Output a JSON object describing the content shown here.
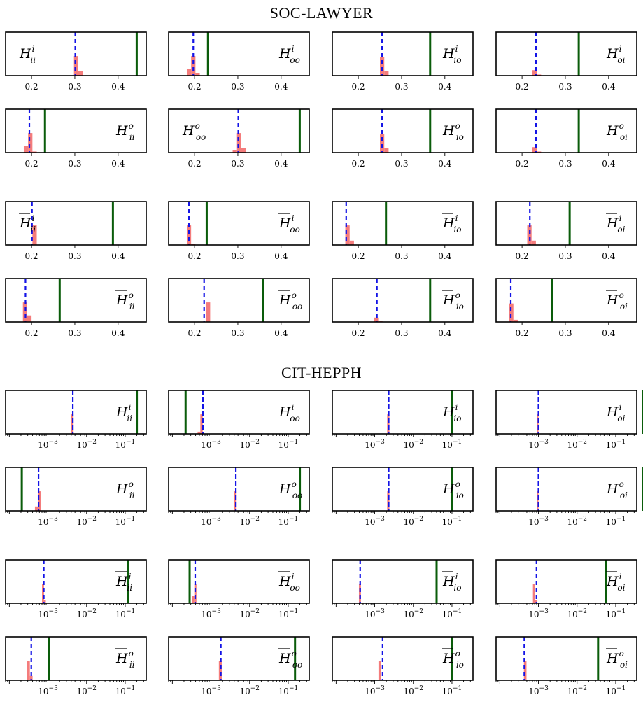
{
  "sections": [
    {
      "title": "SOC-LAWYER",
      "scale": "linear",
      "xlim": [
        0.14,
        0.465
      ],
      "ticks": [
        "0.2",
        "0.3",
        "0.4"
      ],
      "tick_values": [
        0.2,
        0.3,
        0.4
      ]
    },
    {
      "title": "CIT-HEPPH",
      "scale": "log",
      "xlim": [
        8e-05,
        0.35
      ],
      "ticks": [
        "10^-3",
        "10^-2",
        "10^-1"
      ],
      "tick_values": [
        0.001,
        0.01,
        0.1
      ]
    }
  ],
  "colors": {
    "hist": "#f47c7c",
    "observed": "#0a5c0a",
    "mean": "#1414e6",
    "frame": "#000000"
  },
  "chart_data": [
    {
      "type": "histogram-panel",
      "section": 0,
      "label": "H",
      "bar": false,
      "sup": "i",
      "sub": "ii",
      "label_side": "left",
      "observed": 0.443,
      "mean": 0.301,
      "bins": [
        {
          "x0": 0.298,
          "x1": 0.308,
          "h": 0.9
        },
        {
          "x0": 0.308,
          "x1": 0.318,
          "h": 0.2
        }
      ]
    },
    {
      "type": "histogram-panel",
      "section": 0,
      "label": "H",
      "bar": false,
      "sup": "i",
      "sub": "oo",
      "label_side": "right",
      "observed": 0.231,
      "mean": 0.197,
      "bins": [
        {
          "x0": 0.182,
          "x1": 0.192,
          "h": 0.3
        },
        {
          "x0": 0.192,
          "x1": 0.202,
          "h": 0.9
        },
        {
          "x0": 0.202,
          "x1": 0.212,
          "h": 0.1
        }
      ]
    },
    {
      "type": "histogram-panel",
      "section": 0,
      "label": "H",
      "bar": false,
      "sup": "i",
      "sub": "io",
      "label_side": "right",
      "observed": 0.366,
      "mean": 0.255,
      "bins": [
        {
          "x0": 0.25,
          "x1": 0.26,
          "h": 0.85
        },
        {
          "x0": 0.26,
          "x1": 0.27,
          "h": 0.2
        }
      ]
    },
    {
      "type": "histogram-panel",
      "section": 0,
      "label": "H",
      "bar": false,
      "sup": "i",
      "sub": "oi",
      "label_side": "right",
      "observed": 0.331,
      "mean": 0.232,
      "bins": [
        {
          "x0": 0.224,
          "x1": 0.234,
          "h": 0.25
        },
        {
          "x0": 0.234,
          "x1": 0.244,
          "h": 0.05
        }
      ]
    },
    {
      "type": "histogram-panel",
      "section": 0,
      "label": "H",
      "bar": false,
      "sup": "o",
      "sub": "ii",
      "label_side": "right",
      "observed": 0.231,
      "mean": 0.195,
      "bins": [
        {
          "x0": 0.182,
          "x1": 0.192,
          "h": 0.3
        },
        {
          "x0": 0.192,
          "x1": 0.202,
          "h": 0.9
        },
        {
          "x0": 0.202,
          "x1": 0.212,
          "h": 0.05
        }
      ]
    },
    {
      "type": "histogram-panel",
      "section": 0,
      "label": "H",
      "bar": false,
      "sup": "o",
      "sub": "oo",
      "label_side": "left",
      "observed": 0.443,
      "mean": 0.301,
      "bins": [
        {
          "x0": 0.288,
          "x1": 0.298,
          "h": 0.1
        },
        {
          "x0": 0.298,
          "x1": 0.308,
          "h": 0.9
        },
        {
          "x0": 0.308,
          "x1": 0.318,
          "h": 0.2
        }
      ]
    },
    {
      "type": "histogram-panel",
      "section": 0,
      "label": "H",
      "bar": false,
      "sup": "o",
      "sub": "io",
      "label_side": "right",
      "observed": 0.366,
      "mean": 0.255,
      "bins": [
        {
          "x0": 0.25,
          "x1": 0.26,
          "h": 0.85
        },
        {
          "x0": 0.26,
          "x1": 0.27,
          "h": 0.2
        }
      ]
    },
    {
      "type": "histogram-panel",
      "section": 0,
      "label": "H",
      "bar": false,
      "sup": "o",
      "sub": "oi",
      "label_side": "right",
      "observed": 0.331,
      "mean": 0.232,
      "bins": [
        {
          "x0": 0.224,
          "x1": 0.234,
          "h": 0.25
        },
        {
          "x0": 0.234,
          "x1": 0.244,
          "h": 0.05
        }
      ]
    },
    {
      "type": "histogram-panel",
      "section": 0,
      "label": "H",
      "bar": true,
      "sup": "i",
      "sub": "ii",
      "label_side": "left",
      "observed": 0.388,
      "mean": 0.201,
      "bins": [
        {
          "x0": 0.202,
          "x1": 0.212,
          "h": 0.9
        }
      ]
    },
    {
      "type": "histogram-panel",
      "section": 0,
      "label": "H",
      "bar": true,
      "sup": "i",
      "sub": "oo",
      "label_side": "right",
      "observed": 0.228,
      "mean": 0.187,
      "bins": [
        {
          "x0": 0.182,
          "x1": 0.192,
          "h": 0.9
        },
        {
          "x0": 0.192,
          "x1": 0.202,
          "h": 0.05
        }
      ]
    },
    {
      "type": "histogram-panel",
      "section": 0,
      "label": "H",
      "bar": true,
      "sup": "i",
      "sub": "io",
      "label_side": "right",
      "observed": 0.264,
      "mean": 0.172,
      "bins": [
        {
          "x0": 0.17,
          "x1": 0.18,
          "h": 0.9
        },
        {
          "x0": 0.18,
          "x1": 0.19,
          "h": 0.2
        }
      ]
    },
    {
      "type": "histogram-panel",
      "section": 0,
      "label": "H",
      "bar": true,
      "sup": "i",
      "sub": "oi",
      "label_side": "right",
      "observed": 0.31,
      "mean": 0.218,
      "bins": [
        {
          "x0": 0.212,
          "x1": 0.222,
          "h": 0.9
        },
        {
          "x0": 0.222,
          "x1": 0.232,
          "h": 0.2
        }
      ]
    },
    {
      "type": "histogram-panel",
      "section": 0,
      "label": "H",
      "bar": true,
      "sup": "o",
      "sub": "ii",
      "label_side": "right",
      "observed": 0.265,
      "mean": 0.186,
      "bins": [
        {
          "x0": 0.18,
          "x1": 0.19,
          "h": 0.9
        },
        {
          "x0": 0.19,
          "x1": 0.2,
          "h": 0.3
        }
      ]
    },
    {
      "type": "histogram-panel",
      "section": 0,
      "label": "H",
      "bar": true,
      "sup": "o",
      "sub": "oo",
      "label_side": "right",
      "observed": 0.358,
      "mean": 0.222,
      "bins": [
        {
          "x0": 0.226,
          "x1": 0.236,
          "h": 0.9
        }
      ]
    },
    {
      "type": "histogram-panel",
      "section": 0,
      "label": "H",
      "bar": true,
      "sup": "o",
      "sub": "io",
      "label_side": "right",
      "observed": 0.366,
      "mean": 0.243,
      "bins": [
        {
          "x0": 0.236,
          "x1": 0.246,
          "h": 0.2
        },
        {
          "x0": 0.246,
          "x1": 0.256,
          "h": 0.05
        }
      ]
    },
    {
      "type": "histogram-panel",
      "section": 0,
      "label": "H",
      "bar": true,
      "sup": "o",
      "sub": "oi",
      "label_side": "right",
      "observed": 0.27,
      "mean": 0.174,
      "bins": [
        {
          "x0": 0.17,
          "x1": 0.18,
          "h": 0.85
        },
        {
          "x0": 0.18,
          "x1": 0.19,
          "h": 0.1
        }
      ]
    },
    {
      "type": "histogram-panel",
      "section": 1,
      "label": "H",
      "bar": false,
      "sup": "i",
      "sub": "ii",
      "label_side": "right",
      "observed": 0.2,
      "mean": 0.0044,
      "bins": [
        {
          "x0": 0.004,
          "x1": 0.0046,
          "h": 0.9
        }
      ]
    },
    {
      "type": "histogram-panel",
      "section": 1,
      "label": "H",
      "bar": false,
      "sup": "i",
      "sub": "oo",
      "label_side": "right",
      "observed": 0.00022,
      "mean": 0.00062,
      "bins": [
        {
          "x0": 0.00053,
          "x1": 0.00061,
          "h": 0.9
        },
        {
          "x0": 0.00045,
          "x1": 0.00053,
          "h": 0.1
        }
      ]
    },
    {
      "type": "histogram-panel",
      "section": 1,
      "label": "H",
      "bar": false,
      "sup": "i",
      "sub": "io",
      "label_side": "right",
      "observed": 0.1,
      "mean": 0.0023,
      "bins": [
        {
          "x0": 0.0021,
          "x1": 0.0024,
          "h": 0.9
        }
      ]
    },
    {
      "type": "histogram-panel",
      "section": 1,
      "label": "H",
      "bar": false,
      "sup": "i",
      "sub": "oi",
      "label_side": "right",
      "observed": 0.5,
      "mean": 0.001,
      "bins": [
        {
          "x0": 0.00092,
          "x1": 0.001,
          "h": 0.9
        }
      ]
    },
    {
      "type": "histogram-panel",
      "section": 1,
      "label": "H",
      "bar": false,
      "sup": "o",
      "sub": "ii",
      "label_side": "right",
      "observed": 0.00021,
      "mean": 0.00057,
      "bins": [
        {
          "x0": 0.00056,
          "x1": 0.00066,
          "h": 0.9
        },
        {
          "x0": 0.00046,
          "x1": 0.00056,
          "h": 0.2
        }
      ]
    },
    {
      "type": "histogram-panel",
      "section": 1,
      "label": "H",
      "bar": false,
      "sup": "o",
      "sub": "oo",
      "label_side": "right",
      "observed": 0.2,
      "mean": 0.0044,
      "bins": [
        {
          "x0": 0.004,
          "x1": 0.0046,
          "h": 0.9
        }
      ]
    },
    {
      "type": "histogram-panel",
      "section": 1,
      "label": "H",
      "bar": false,
      "sup": "o",
      "sub": "io",
      "label_side": "right",
      "observed": 0.1,
      "mean": 0.0023,
      "bins": [
        {
          "x0": 0.0021,
          "x1": 0.0024,
          "h": 0.9
        }
      ]
    },
    {
      "type": "histogram-panel",
      "section": 1,
      "label": "H",
      "bar": false,
      "sup": "o",
      "sub": "oi",
      "label_side": "right",
      "observed": 0.5,
      "mean": 0.001,
      "bins": [
        {
          "x0": 0.00092,
          "x1": 0.001,
          "h": 0.9
        }
      ]
    },
    {
      "type": "histogram-panel",
      "section": 1,
      "label": "H",
      "bar": true,
      "sup": "i",
      "sub": "ii",
      "label_side": "right",
      "observed": 0.12,
      "mean": 0.00078,
      "bins": [
        {
          "x0": 0.0007,
          "x1": 0.00079,
          "h": 0.9
        },
        {
          "x0": 0.00079,
          "x1": 0.00088,
          "h": 0.15
        }
      ]
    },
    {
      "type": "histogram-panel",
      "section": 1,
      "label": "H",
      "bar": true,
      "sup": "i",
      "sub": "oo",
      "label_side": "right",
      "observed": 0.00028,
      "mean": 0.00039,
      "bins": [
        {
          "x0": 0.00032,
          "x1": 0.00037,
          "h": 0.35
        },
        {
          "x0": 0.00037,
          "x1": 0.00042,
          "h": 0.9
        }
      ]
    },
    {
      "type": "histogram-panel",
      "section": 1,
      "label": "H",
      "bar": true,
      "sup": "i",
      "sub": "io",
      "label_side": "right",
      "observed": 0.04,
      "mean": 0.00042,
      "bins": [
        {
          "x0": 0.00039,
          "x1": 0.00044,
          "h": 0.9
        }
      ]
    },
    {
      "type": "histogram-panel",
      "section": 1,
      "label": "H",
      "bar": true,
      "sup": "i",
      "sub": "oi",
      "label_side": "right",
      "observed": 0.055,
      "mean": 0.00089,
      "bins": [
        {
          "x0": 0.00072,
          "x1": 0.00082,
          "h": 0.9
        },
        {
          "x0": 0.00082,
          "x1": 0.00092,
          "h": 0.15
        }
      ]
    },
    {
      "type": "histogram-panel",
      "section": 1,
      "label": "H",
      "bar": true,
      "sup": "o",
      "sub": "ii",
      "label_side": "right",
      "observed": 0.00105,
      "mean": 0.00037,
      "bins": [
        {
          "x0": 0.00028,
          "x1": 0.00034,
          "h": 0.9
        },
        {
          "x0": 0.00034,
          "x1": 0.0004,
          "h": 0.2
        }
      ]
    },
    {
      "type": "histogram-panel",
      "section": 1,
      "label": "H",
      "bar": true,
      "sup": "o",
      "sub": "oo",
      "label_side": "right",
      "observed": 0.15,
      "mean": 0.0018,
      "bins": [
        {
          "x0": 0.0016,
          "x1": 0.0019,
          "h": 0.9
        }
      ]
    },
    {
      "type": "histogram-panel",
      "section": 1,
      "label": "H",
      "bar": true,
      "sup": "o",
      "sub": "io",
      "label_side": "right",
      "observed": 0.1,
      "mean": 0.0016,
      "bins": [
        {
          "x0": 0.00125,
          "x1": 0.00145,
          "h": 0.9
        }
      ]
    },
    {
      "type": "histogram-panel",
      "section": 1,
      "label": "H",
      "bar": true,
      "sup": "o",
      "sub": "oi",
      "label_side": "right",
      "observed": 0.035,
      "mean": 0.00043,
      "bins": [
        {
          "x0": 0.00042,
          "x1": 0.00049,
          "h": 0.9
        }
      ]
    }
  ]
}
